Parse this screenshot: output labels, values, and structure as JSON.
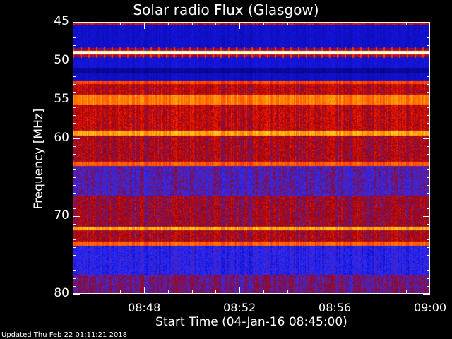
{
  "chart_data": {
    "type": "heatmap",
    "title": "Solar radio Flux (Glasgow)",
    "xlabel": "Start Time (04-Jan-16 08:45:00)",
    "ylabel": "Frequency [MHz]",
    "x_ticks": [
      "08:48",
      "08:52",
      "08:56",
      "09:00"
    ],
    "x_tick_minutes": [
      48,
      52,
      56,
      60
    ],
    "x_range_minutes_after_0800": [
      45,
      60
    ],
    "y_ticks": [
      45,
      50,
      55,
      60,
      70,
      80
    ],
    "ylim": [
      45,
      80
    ],
    "colormap": [
      "#000050",
      "#1010d0",
      "#3030ff",
      "#a00000",
      "#ff2000",
      "#ff8000",
      "#ffff40",
      "#ffffff"
    ],
    "frequency_profile": [
      {
        "from": 45.0,
        "to": 45.3,
        "level": 0.5
      },
      {
        "from": 45.3,
        "to": 48.3,
        "level": 0.14
      },
      {
        "from": 48.3,
        "to": 48.7,
        "level": 0.4
      },
      {
        "from": 48.7,
        "to": 49.1,
        "level": 0.97
      },
      {
        "from": 49.1,
        "to": 49.4,
        "level": 0.45
      },
      {
        "from": 49.4,
        "to": 50.9,
        "level": 0.16
      },
      {
        "from": 50.9,
        "to": 51.6,
        "level": 0.08
      },
      {
        "from": 51.6,
        "to": 52.5,
        "level": 0.13
      },
      {
        "from": 52.5,
        "to": 53.0,
        "level": 0.62
      },
      {
        "from": 53.0,
        "to": 54.3,
        "level": 0.46
      },
      {
        "from": 54.3,
        "to": 55.6,
        "level": 0.7
      },
      {
        "from": 55.6,
        "to": 59.0,
        "level": 0.47
      },
      {
        "from": 59.0,
        "to": 59.6,
        "level": 0.75
      },
      {
        "from": 59.6,
        "to": 63.0,
        "level": 0.44
      },
      {
        "from": 63.0,
        "to": 63.5,
        "level": 0.65
      },
      {
        "from": 63.5,
        "to": 67.3,
        "level": 0.32
      },
      {
        "from": 67.3,
        "to": 69.8,
        "level": 0.42
      },
      {
        "from": 69.8,
        "to": 71.3,
        "level": 0.42
      },
      {
        "from": 71.3,
        "to": 71.8,
        "level": 0.75
      },
      {
        "from": 71.8,
        "to": 73.2,
        "level": 0.44
      },
      {
        "from": 73.2,
        "to": 73.8,
        "level": 0.66
      },
      {
        "from": 73.8,
        "to": 77.5,
        "level": 0.24
      },
      {
        "from": 77.5,
        "to": 80.0,
        "level": 0.36
      }
    ]
  },
  "footer": {
    "updated": "Updated Thu Feb 22 01:11:21 2018"
  }
}
